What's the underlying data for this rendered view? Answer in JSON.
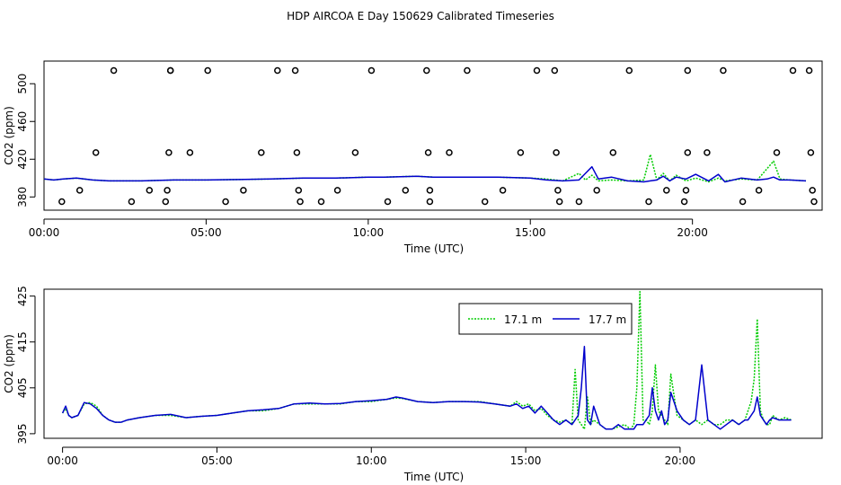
{
  "title": "HDP AIRCOA E  Day 150629  Calibrated Timeseries",
  "colors": {
    "series_a": "#00cc00",
    "series_b": "#0000cc",
    "axis": "#000000"
  },
  "chart_data": [
    {
      "type": "line",
      "panel": "top",
      "xlabel": "Time (UTC)",
      "ylabel": "CO2 (ppm)",
      "x_unit": "hours UTC",
      "xlim": [
        0,
        24
      ],
      "ylim": [
        366,
        524
      ],
      "x_ticks": [
        0,
        5,
        10,
        15,
        20
      ],
      "x_tick_labels": [
        "00:00",
        "05:00",
        "10:00",
        "15:00",
        "20:00"
      ],
      "y_ticks": [
        380,
        420,
        460,
        500
      ],
      "y_tick_labels": [
        "380",
        "420",
        "460",
        "500"
      ],
      "series": [
        {
          "x": [
            0,
            0.3,
            0.6,
            1,
            1.5,
            2,
            3,
            4,
            5,
            6,
            7,
            8,
            9,
            10,
            10.5,
            11,
            11.5,
            12,
            13,
            14,
            14.5,
            15,
            15.5,
            16,
            16.5,
            16.7,
            16.9,
            17.1,
            17.5,
            18,
            18.5,
            18.7,
            18.9,
            19.1,
            19.3,
            19.5,
            19.8,
            20.1,
            20.5,
            20.8,
            21,
            21.5,
            22,
            22.3,
            22.5,
            22.7,
            23,
            23.5
          ],
          "y": [
            399,
            398,
            399,
            400,
            398,
            397,
            397,
            398,
            398,
            398.5,
            399,
            400,
            400,
            401,
            401,
            401.5,
            402,
            401,
            401,
            401,
            400.5,
            400,
            399,
            397,
            405,
            398,
            403,
            397,
            398,
            397,
            398,
            425,
            398,
            405,
            397,
            403,
            397,
            400,
            396,
            400,
            397,
            399,
            398,
            410,
            418,
            399,
            398,
            397
          ]
        },
        {
          "x": [
            0,
            0.3,
            0.6,
            1,
            1.5,
            2,
            3,
            4,
            5,
            6,
            7,
            8,
            9,
            10,
            10.5,
            11,
            11.5,
            12,
            13,
            14,
            14.5,
            15,
            15.5,
            16,
            16.5,
            16.7,
            16.9,
            17.1,
            17.5,
            18,
            18.5,
            18.7,
            18.9,
            19.1,
            19.3,
            19.5,
            19.8,
            20.1,
            20.5,
            20.8,
            21,
            21.5,
            22,
            22.3,
            22.5,
            22.7,
            23,
            23.5
          ],
          "y": [
            399,
            398,
            399,
            400,
            398,
            397,
            397,
            398,
            398,
            398.5,
            399,
            400,
            400,
            401,
            401,
            401.5,
            402,
            401,
            401,
            401,
            400.5,
            400,
            398,
            397,
            398,
            405,
            412,
            399,
            401,
            397,
            396,
            397,
            398,
            402,
            397,
            401,
            399,
            404,
            397,
            404,
            396,
            400,
            398,
            399,
            401,
            398,
            398,
            397
          ]
        }
      ],
      "markers": {
        "x": [
          0.55,
          1.1,
          1.6,
          2.15,
          2.7,
          3.25,
          3.75,
          3.8,
          3.85,
          3.9,
          3.9,
          4.5,
          5.05,
          5.6,
          6.15,
          6.7,
          7.2,
          7.75,
          7.8,
          7.85,
          7.9,
          8.55,
          9.05,
          9.6,
          10.1,
          10.6,
          11.15,
          11.8,
          11.85,
          11.9,
          11.9,
          12.5,
          13.05,
          13.6,
          14.15,
          14.7,
          15.2,
          15.75,
          15.8,
          15.85,
          15.9,
          16.5,
          17.05,
          17.55,
          18.05,
          18.65,
          19.2,
          19.75,
          19.8,
          19.85,
          19.85,
          20.45,
          20.95,
          21.55,
          22.05,
          22.6,
          23.1,
          23.6,
          23.65,
          23.7,
          23.75
        ],
        "y": [
          375,
          387,
          427,
          514,
          375,
          387,
          375,
          387,
          427,
          514,
          514,
          427,
          514,
          375,
          387,
          427,
          514,
          514,
          427,
          387,
          375,
          375,
          387,
          427,
          514,
          375,
          387,
          514,
          427,
          387,
          375,
          427,
          514,
          375,
          387,
          427,
          514,
          514,
          427,
          387,
          375,
          375,
          387,
          427,
          514,
          375,
          387,
          375,
          387,
          427,
          514,
          427,
          514,
          375,
          387,
          427,
          514,
          514,
          427,
          387,
          375
        ]
      }
    },
    {
      "type": "line",
      "panel": "bottom",
      "xlabel": "Time (UTC)",
      "ylabel": "CO2 (ppm)",
      "x_unit": "hours UTC",
      "xlim": [
        -0.6,
        24.6
      ],
      "ylim": [
        394,
        426.5
      ],
      "x_ticks": [
        0,
        5,
        10,
        15,
        20
      ],
      "x_tick_labels": [
        "00:00",
        "05:00",
        "10:00",
        "15:00",
        "20:00"
      ],
      "y_ticks": [
        395,
        405,
        415,
        425
      ],
      "y_tick_labels": [
        "395",
        "405",
        "415",
        "425"
      ],
      "legend": {
        "position": "top-right",
        "entries": [
          "17.1 m",
          "17.7 m"
        ]
      },
      "series": [
        {
          "name": "17.1 m",
          "x": [
            0,
            0.1,
            0.2,
            0.3,
            0.5,
            0.7,
            0.9,
            1.1,
            1.3,
            1.5,
            1.7,
            1.9,
            2.1,
            2.5,
            3,
            3.5,
            4,
            4.5,
            5,
            5.5,
            6,
            6.5,
            7,
            7.5,
            8,
            8.5,
            9,
            9.5,
            10,
            10.5,
            10.8,
            11,
            11.5,
            12,
            12.5,
            13,
            13.5,
            14,
            14.5,
            14.7,
            14.9,
            15.1,
            15.3,
            15.5,
            15.7,
            15.9,
            16.1,
            16.3,
            16.5,
            16.6,
            16.7,
            16.8,
            16.9,
            17,
            17.1,
            17.2,
            17.4,
            17.6,
            17.8,
            18,
            18.2,
            18.4,
            18.5,
            18.6,
            18.7,
            18.8,
            18.9,
            19,
            19.1,
            19.2,
            19.3,
            19.4,
            19.5,
            19.6,
            19.7,
            19.9,
            20.1,
            20.3,
            20.5,
            20.7,
            20.9,
            21.1,
            21.3,
            21.5,
            21.7,
            21.9,
            22.1,
            22.2,
            22.3,
            22.4,
            22.5,
            22.6,
            22.7,
            22.8,
            22.9,
            23,
            23.2,
            23.4,
            23.6
          ],
          "y": [
            399.5,
            400.5,
            399,
            398.5,
            399,
            401.5,
            401.8,
            401,
            399,
            398,
            397.5,
            397.5,
            398,
            398.5,
            399,
            399,
            398.5,
            398.8,
            399,
            399.5,
            400,
            400,
            400.5,
            401.5,
            401.5,
            401.5,
            401.5,
            402,
            402,
            402.5,
            402.8,
            402.7,
            402,
            401.8,
            402,
            402,
            402,
            401.5,
            401,
            402,
            401,
            401.5,
            400,
            400.5,
            399,
            398,
            397.5,
            398,
            397,
            409,
            398,
            397,
            396,
            403,
            397,
            398,
            397,
            396,
            396,
            396.5,
            397,
            396,
            397,
            405,
            426,
            398,
            398,
            397,
            400,
            410,
            400,
            399,
            398,
            397,
            408,
            399,
            398,
            397,
            398,
            397,
            398,
            397,
            397,
            398,
            398,
            397,
            398,
            400,
            402,
            407,
            420,
            400,
            398,
            397,
            397,
            399,
            398,
            398.5,
            398
          ]
        },
        {
          "name": "17.7 m",
          "x": [
            0,
            0.1,
            0.2,
            0.3,
            0.5,
            0.7,
            0.9,
            1.1,
            1.3,
            1.5,
            1.7,
            1.9,
            2.1,
            2.5,
            3,
            3.5,
            4,
            4.5,
            5,
            5.5,
            6,
            6.5,
            7,
            7.5,
            8,
            8.5,
            9,
            9.5,
            10,
            10.5,
            10.8,
            11,
            11.5,
            12,
            12.5,
            13,
            13.5,
            14,
            14.5,
            14.7,
            14.9,
            15.1,
            15.3,
            15.5,
            15.7,
            15.9,
            16.1,
            16.3,
            16.5,
            16.6,
            16.7,
            16.8,
            16.9,
            17,
            17.1,
            17.2,
            17.4,
            17.6,
            17.8,
            18,
            18.2,
            18.4,
            18.5,
            18.6,
            18.7,
            18.8,
            18.9,
            19,
            19.1,
            19.2,
            19.3,
            19.4,
            19.5,
            19.6,
            19.7,
            19.9,
            20.1,
            20.3,
            20.5,
            20.7,
            20.9,
            21.1,
            21.3,
            21.5,
            21.7,
            21.9,
            22.1,
            22.2,
            22.3,
            22.4,
            22.5,
            22.6,
            22.7,
            22.8,
            22.9,
            23,
            23.2,
            23.4,
            23.6
          ],
          "y": [
            399.5,
            401,
            399,
            398.5,
            399,
            401.8,
            401.5,
            400.5,
            399,
            398,
            397.5,
            397.5,
            398,
            398.5,
            399,
            399.2,
            398.5,
            398.8,
            399,
            399.5,
            400,
            400.2,
            400.5,
            401.5,
            401.7,
            401.5,
            401.6,
            402,
            402.2,
            402.5,
            403,
            402.8,
            402,
            401.8,
            402,
            402,
            401.9,
            401.5,
            401,
            401.5,
            400.5,
            401,
            399.5,
            401,
            399.5,
            398,
            397,
            398,
            397,
            398,
            399,
            405,
            414,
            398,
            397,
            401,
            397,
            396,
            396,
            397,
            396,
            396,
            396,
            397,
            397,
            397,
            398,
            399,
            405,
            400,
            398,
            400,
            397,
            398,
            404,
            400,
            398,
            397,
            398,
            410,
            398,
            397,
            396,
            397,
            398,
            397,
            398,
            398,
            399,
            400,
            403,
            399,
            398,
            397,
            398,
            398.5,
            398,
            398,
            398
          ]
        }
      ]
    }
  ]
}
